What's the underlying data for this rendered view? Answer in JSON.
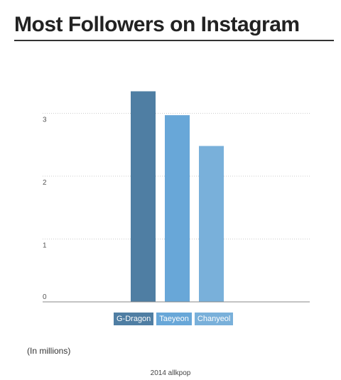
{
  "title": "Most Followers on Instagram",
  "units_label": "(In millions)",
  "source": "2014 allkpop",
  "colors": {
    "gdragon": "#4f7ea3",
    "taeyeon": "#68a7d8",
    "chanyeol": "#79b0da",
    "grid": "#cccccc",
    "axis": "#888888"
  },
  "chart_data": {
    "type": "bar",
    "title": "Most Followers on Instagram",
    "xlabel": "",
    "ylabel": "",
    "categories": [
      "G-Dragon",
      "Taeyeon",
      "Chanyeol"
    ],
    "values": [
      3.35,
      2.97,
      2.48
    ],
    "ylim": [
      0,
      3.1
    ],
    "yticks": [
      "0",
      "1",
      "2",
      "3"
    ],
    "grid": true,
    "legend": "bottom"
  }
}
